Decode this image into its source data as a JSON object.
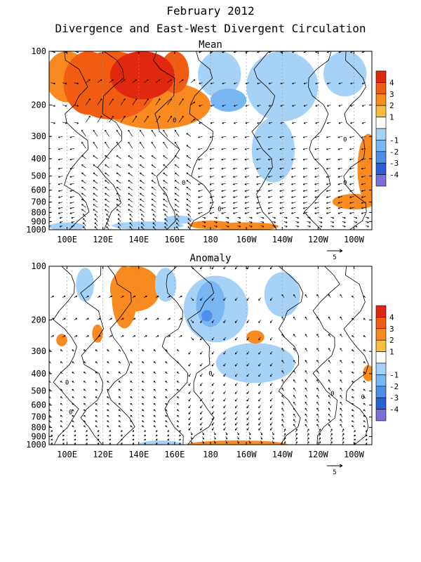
{
  "figure": {
    "title": "February 2012",
    "subtitle": "Divergence and East-West Divergent Circulation"
  },
  "chart_data": [
    {
      "type": "heatmap",
      "panel": "Mean",
      "title": "Mean",
      "x_ticks": [
        "100E",
        "120E",
        "140E",
        "160E",
        "180",
        "160W",
        "140W",
        "120W",
        "100W"
      ],
      "x_range": [
        90,
        270
      ],
      "y_ticks": [
        "100",
        "200",
        "300",
        "400",
        "500",
        "600",
        "700",
        "800",
        "900",
        "1000"
      ],
      "y_range": [
        1000,
        100
      ],
      "y_scale": "log",
      "reference_vector": "5",
      "colorbar": {
        "labels": [
          "4",
          "3",
          "2",
          "1",
          "-1",
          "-2",
          "-3",
          "-4"
        ],
        "colors": [
          "#e0270f",
          "#f25c12",
          "#f98a20",
          "#fbbc3c",
          "#ffffff",
          "#a6d2f7",
          "#79b6f4",
          "#4c8fea",
          "#2c5fd6",
          "#7b6fd8"
        ]
      },
      "contour_label": "0",
      "divergence_blobs": [
        {
          "lon": 100,
          "p": 130,
          "rlon": 12,
          "rp": 90,
          "level": 2
        },
        {
          "lon": 112,
          "p": 150,
          "rlon": 14,
          "rp": 110,
          "level": 3
        },
        {
          "lon": 125,
          "p": 150,
          "rlon": 25,
          "rp": 130,
          "level": 3
        },
        {
          "lon": 142,
          "p": 130,
          "rlon": 18,
          "rp": 80,
          "level": 4
        },
        {
          "lon": 150,
          "p": 210,
          "rlon": 30,
          "rp": 90,
          "level": 2
        },
        {
          "lon": 160,
          "p": 130,
          "rlon": 8,
          "rp": 60,
          "level": 3
        },
        {
          "lon": 185,
          "p": 140,
          "rlon": 12,
          "rp": 60,
          "level": -2
        },
        {
          "lon": 190,
          "p": 190,
          "rlon": 10,
          "rp": 40,
          "level": -3
        },
        {
          "lon": 220,
          "p": 170,
          "rlon": 20,
          "rp": 110,
          "level": -2
        },
        {
          "lon": 215,
          "p": 390,
          "rlon": 12,
          "rp": 220,
          "level": -2
        },
        {
          "lon": 255,
          "p": 130,
          "rlon": 12,
          "rp": 70,
          "level": -2
        },
        {
          "lon": 268,
          "p": 500,
          "rlon": 6,
          "rp": 300,
          "level": 2
        },
        {
          "lon": 260,
          "p": 700,
          "rlon": 12,
          "rp": 100,
          "level": 2
        },
        {
          "lon": 200,
          "p": 960,
          "rlon": 18,
          "rp": 60,
          "level": 2
        },
        {
          "lon": 180,
          "p": 940,
          "rlon": 12,
          "rp": 50,
          "level": 2
        },
        {
          "lon": 100,
          "p": 960,
          "rlon": 10,
          "rp": 40,
          "level": -2
        },
        {
          "lon": 145,
          "p": 950,
          "rlon": 20,
          "rp": 60,
          "level": -2
        },
        {
          "lon": 162,
          "p": 880,
          "rlon": 8,
          "rp": 60,
          "level": -2
        }
      ]
    },
    {
      "type": "heatmap",
      "panel": "Anomaly",
      "title": "Anomaly",
      "x_ticks": [
        "100E",
        "120E",
        "140E",
        "160E",
        "180",
        "160W",
        "140W",
        "120W",
        "100W"
      ],
      "x_range": [
        90,
        270
      ],
      "y_ticks": [
        "100",
        "200",
        "300",
        "400",
        "500",
        "600",
        "700",
        "800",
        "900",
        "1000"
      ],
      "y_range": [
        1000,
        100
      ],
      "y_scale": "log",
      "reference_vector": "5",
      "colorbar": {
        "labels": [
          "4",
          "3",
          "2",
          "1",
          "-1",
          "-2",
          "-3",
          "-4"
        ],
        "colors": [
          "#e0270f",
          "#f25c12",
          "#f98a20",
          "#fbbc3c",
          "#ffffff",
          "#a6d2f7",
          "#79b6f4",
          "#4c8fea",
          "#2c5fd6",
          "#7b6fd8"
        ]
      },
      "contour_label": "0",
      "divergence_blobs": [
        {
          "lon": 138,
          "p": 130,
          "rlon": 14,
          "rp": 70,
          "level": 2
        },
        {
          "lon": 132,
          "p": 160,
          "rlon": 7,
          "rp": 90,
          "level": 2
        },
        {
          "lon": 110,
          "p": 130,
          "rlon": 5,
          "rp": 40,
          "level": -2
        },
        {
          "lon": 155,
          "p": 130,
          "rlon": 6,
          "rp": 40,
          "level": -2
        },
        {
          "lon": 117,
          "p": 240,
          "rlon": 3,
          "rp": 40,
          "level": 2
        },
        {
          "lon": 97,
          "p": 260,
          "rlon": 3,
          "rp": 30,
          "level": 2
        },
        {
          "lon": 183,
          "p": 190,
          "rlon": 18,
          "rp": 110,
          "level": -2
        },
        {
          "lon": 180,
          "p": 170,
          "rlon": 8,
          "rp": 70,
          "level": -3
        },
        {
          "lon": 178,
          "p": 190,
          "rlon": 3,
          "rp": 20,
          "level": -4
        },
        {
          "lon": 205,
          "p": 360,
          "rlon": 22,
          "rp": 130,
          "level": -2
        },
        {
          "lon": 220,
          "p": 150,
          "rlon": 10,
          "rp": 60,
          "level": -2
        },
        {
          "lon": 152,
          "p": 1000,
          "rlon": 12,
          "rp": 40,
          "level": -2
        },
        {
          "lon": 195,
          "p": 1000,
          "rlon": 28,
          "rp": 40,
          "level": 2
        },
        {
          "lon": 268,
          "p": 400,
          "rlon": 3,
          "rp": 60,
          "level": 2
        },
        {
          "lon": 205,
          "p": 250,
          "rlon": 5,
          "rp": 30,
          "level": 2
        }
      ]
    }
  ]
}
